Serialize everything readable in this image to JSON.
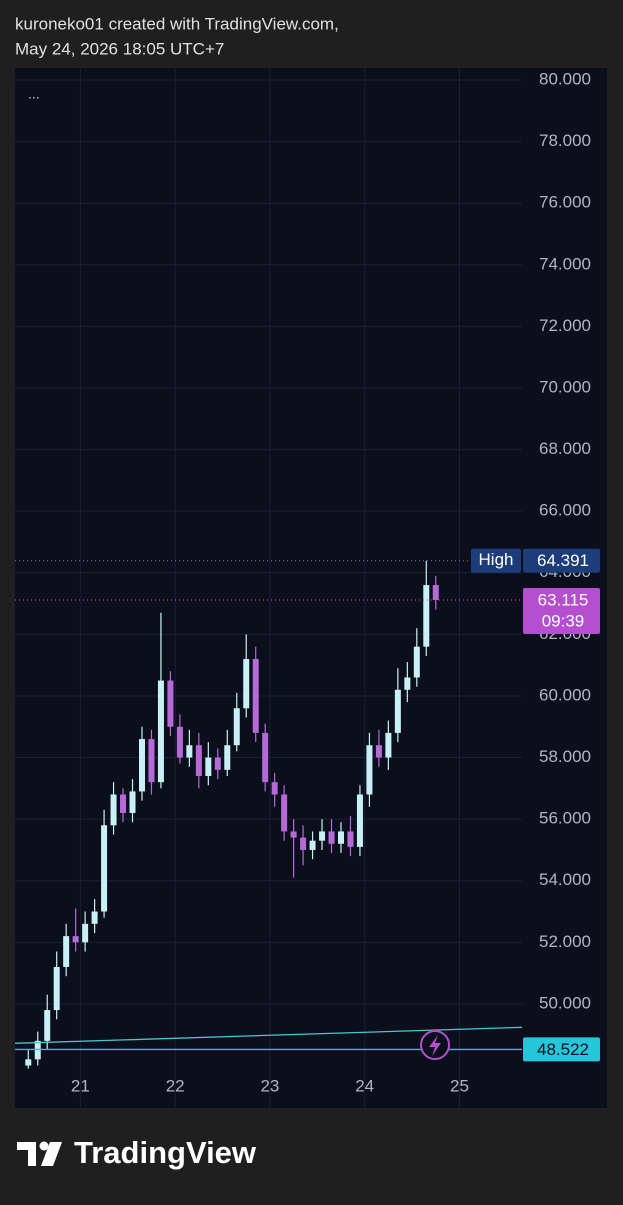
{
  "header": {
    "line1": "kuroneko01 created with TradingView.com,",
    "line2": "May 24, 2026 18:05 UTC+7"
  },
  "chart_data": {
    "type": "candlestick",
    "menu": "...",
    "x": [
      20.45,
      20.55,
      20.65,
      20.75,
      20.85,
      20.95,
      21.05,
      21.15,
      21.25,
      21.35,
      21.45,
      21.55,
      21.65,
      21.75,
      21.85,
      21.95,
      22.05,
      22.15,
      22.25,
      22.35,
      22.45,
      22.55,
      22.65,
      22.75,
      22.85,
      22.95,
      23.05,
      23.15,
      23.25,
      23.35,
      23.45,
      23.55,
      23.65,
      23.75,
      23.85,
      23.95,
      24.05,
      24.15,
      24.25,
      24.35,
      24.45,
      24.55,
      24.65,
      24.75
    ],
    "open": [
      48.0,
      48.2,
      48.8,
      49.8,
      51.2,
      52.2,
      52.0,
      52.6,
      53.0,
      55.8,
      56.8,
      56.2,
      56.9,
      58.6,
      57.2,
      60.5,
      59.0,
      58.0,
      58.4,
      57.4,
      58.0,
      57.6,
      58.4,
      59.6,
      61.2,
      58.8,
      57.2,
      56.8,
      55.6,
      55.4,
      55.0,
      55.3,
      55.6,
      55.2,
      55.6,
      55.1,
      56.8,
      58.4,
      58.0,
      58.8,
      60.2,
      60.6,
      61.6,
      63.6
    ],
    "high": [
      48.5,
      49.1,
      50.3,
      51.7,
      52.6,
      53.1,
      53.0,
      53.4,
      56.3,
      57.2,
      57.0,
      57.3,
      59.0,
      58.9,
      62.7,
      60.8,
      59.4,
      58.9,
      58.8,
      58.5,
      58.3,
      58.9,
      60.1,
      62.0,
      61.6,
      59.1,
      57.5,
      57.1,
      56.0,
      55.8,
      55.6,
      56.0,
      56.0,
      55.9,
      56.1,
      57.1,
      58.8,
      58.9,
      59.2,
      60.9,
      61.1,
      62.2,
      64.391,
      63.9
    ],
    "low": [
      47.9,
      48.0,
      48.5,
      49.5,
      50.9,
      51.7,
      51.7,
      52.3,
      52.8,
      55.5,
      55.9,
      55.9,
      56.6,
      56.8,
      57.0,
      58.7,
      57.8,
      57.7,
      57.0,
      57.1,
      57.3,
      57.4,
      58.2,
      59.3,
      58.5,
      56.9,
      56.4,
      55.3,
      54.1,
      54.5,
      54.7,
      55.0,
      54.9,
      54.9,
      54.8,
      54.8,
      56.4,
      57.7,
      57.6,
      58.5,
      59.8,
      60.3,
      61.3,
      62.8
    ],
    "close": [
      48.2,
      48.8,
      49.8,
      51.2,
      52.2,
      52.0,
      52.6,
      53.0,
      55.8,
      56.8,
      56.2,
      56.9,
      58.6,
      57.2,
      60.5,
      59.0,
      58.0,
      58.4,
      57.4,
      58.0,
      57.6,
      58.4,
      59.6,
      61.2,
      58.8,
      57.2,
      56.8,
      55.6,
      55.4,
      55.0,
      55.3,
      55.6,
      55.2,
      55.6,
      55.1,
      56.8,
      58.4,
      58.0,
      58.8,
      60.2,
      60.6,
      61.6,
      63.6,
      63.115
    ],
    "up_color": "#c9f1f5",
    "down_color": "#b56ad8",
    "xlim": [
      20.31,
      25.66
    ],
    "xticks": [
      21,
      22,
      23,
      24,
      25
    ],
    "ylim": [
      46.62,
      80.39
    ],
    "yticks": [
      {
        "value": 80,
        "label": "80.000"
      },
      {
        "value": 78,
        "label": "78.000"
      },
      {
        "value": 76,
        "label": "76.000"
      },
      {
        "value": 74,
        "label": "74.000"
      },
      {
        "value": 72,
        "label": "72.000"
      },
      {
        "value": 70,
        "label": "70.000"
      },
      {
        "value": 68,
        "label": "68.000"
      },
      {
        "value": 66,
        "label": "66.000"
      },
      {
        "value": 64,
        "label": "64.000"
      },
      {
        "value": 62,
        "label": "62.000"
      },
      {
        "value": 60,
        "label": "60.000"
      },
      {
        "value": 58,
        "label": "58.000"
      },
      {
        "value": 56,
        "label": "56.000"
      },
      {
        "value": 54,
        "label": "54.000"
      },
      {
        "value": 52,
        "label": "52.000"
      },
      {
        "value": 50,
        "label": "50.000"
      }
    ],
    "grid": true,
    "high_line": {
      "label": "High",
      "value": 64.391,
      "color": "#1c3d7a"
    },
    "last_price": {
      "value": 63.115,
      "countdown": "09:39",
      "color": "#b44fd0"
    },
    "horizontal_line": {
      "value": 48.522,
      "color": "#26c6da"
    },
    "trend_line": {
      "x": [
        20.31,
        25.66
      ],
      "y": [
        48.72,
        49.24
      ],
      "color": "#4fc3d0"
    }
  },
  "footer": {
    "brand": "TradingView"
  }
}
